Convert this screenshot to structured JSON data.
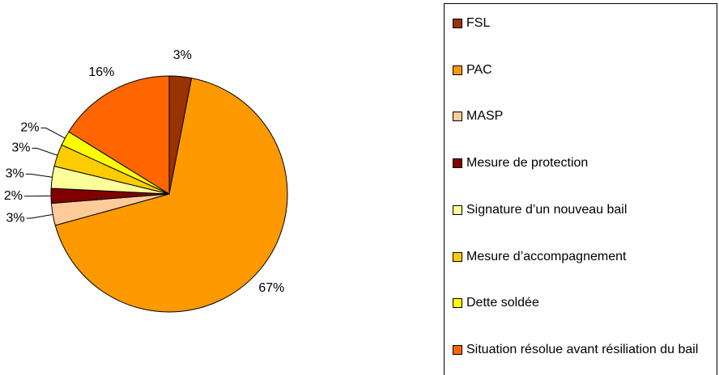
{
  "chart_data": {
    "type": "pie",
    "categories": [
      "FSL",
      "PAC",
      "MASP",
      "Mesure de protection",
      "Signature d’un nouveau bail",
      "Mesure d’accompagnement",
      "Dette soldée",
      "Situation résolue avant résiliation du bail"
    ],
    "values": [
      3,
      67,
      3,
      2,
      3,
      3,
      2,
      16
    ],
    "value_labels": [
      "3%",
      "67%",
      "3%",
      "2%",
      "3%",
      "3%",
      "2%",
      "16%"
    ],
    "colors": [
      "#993300",
      "#ff9900",
      "#ffcc99",
      "#800000",
      "#ffff99",
      "#ffcc00",
      "#ffff00",
      "#ff6600"
    ],
    "legend": "right"
  }
}
